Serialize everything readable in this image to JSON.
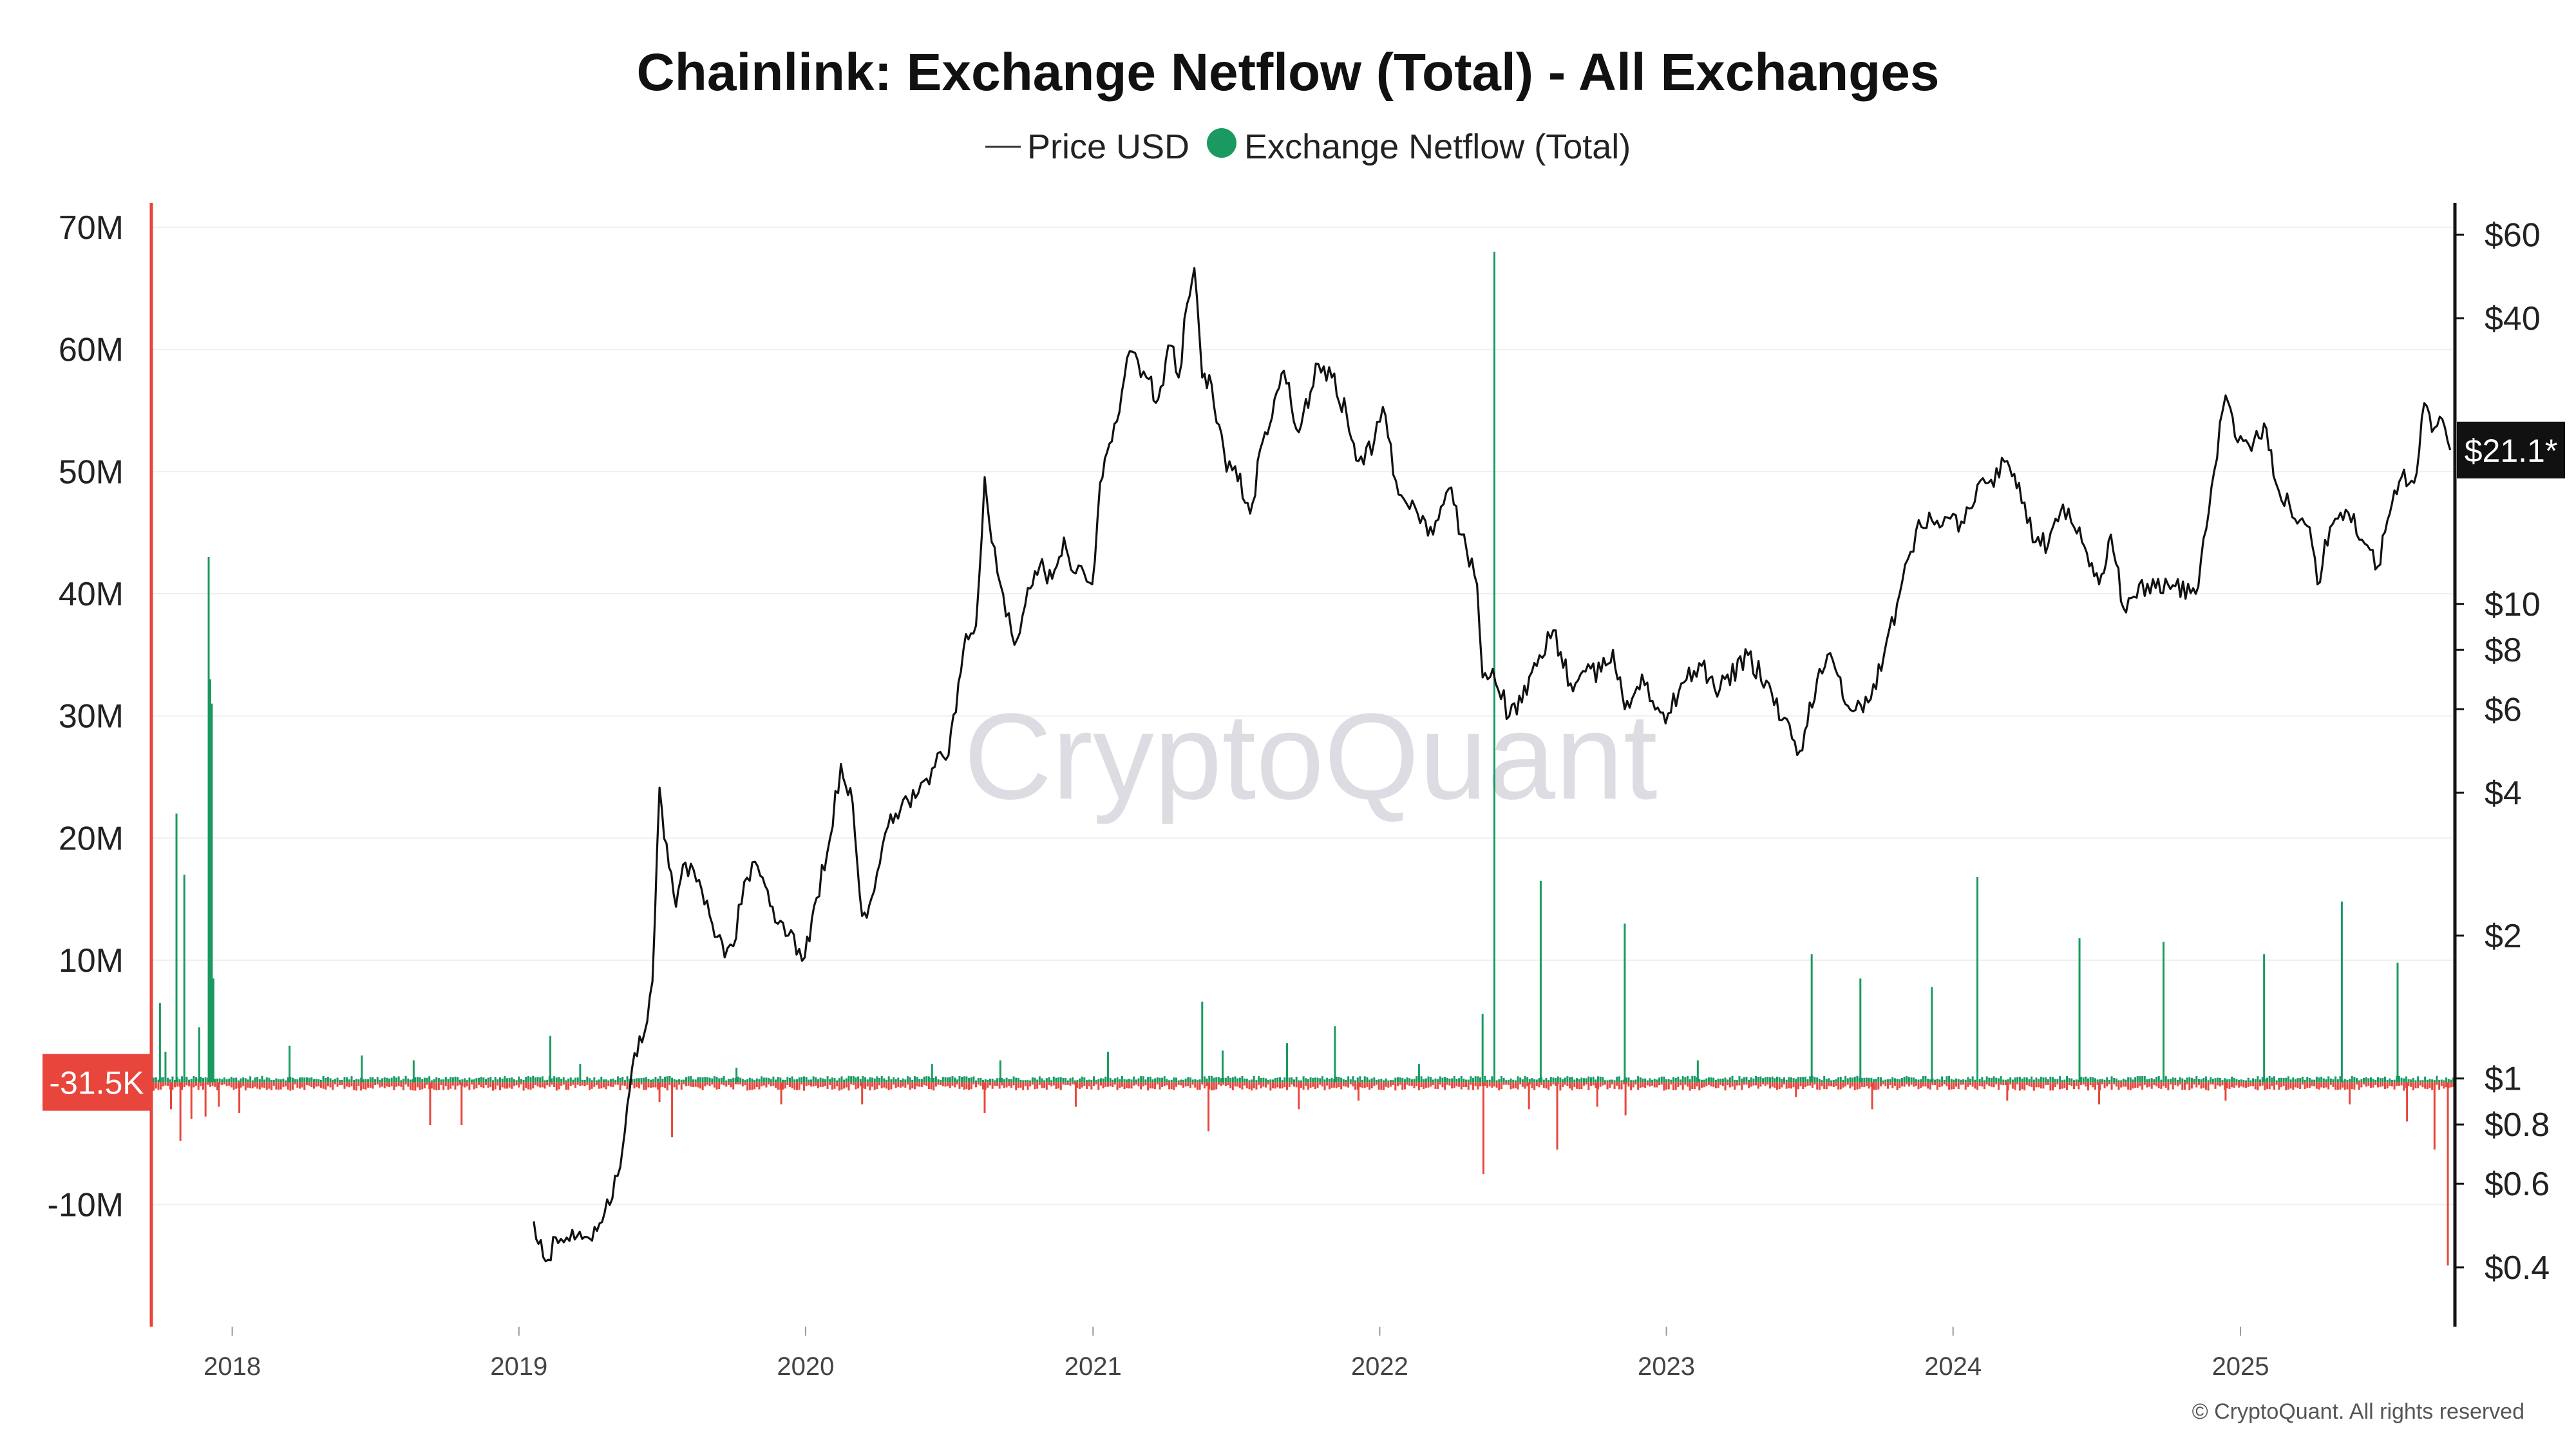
{
  "chart_data": {
    "type": "line",
    "title": "Chainlink: Exchange Netflow (Total) - All Exchanges",
    "legend": [
      {
        "label": "Price USD",
        "symbol": "line",
        "color": "#222222"
      },
      {
        "label": "Exchange Netflow (Total)",
        "symbol": "dot",
        "color": "#1a9a60"
      }
    ],
    "legend_position": "top-center",
    "grid": true,
    "watermark": "CryptoQuant",
    "copyright": "© CryptoQuant. All rights reserved",
    "x_axis": {
      "type": "time",
      "range": [
        "2017-09-20",
        "2025-10-01"
      ],
      "ticks": [
        "2018",
        "2019",
        "2020",
        "2021",
        "2022",
        "2023",
        "2024",
        "2025"
      ]
    },
    "y_left": {
      "label": "Exchange Netflow (Total)",
      "range": [
        -20000000,
        72000000
      ],
      "ticks": [
        {
          "value": 70000000,
          "label": "70M"
        },
        {
          "value": 60000000,
          "label": "60M"
        },
        {
          "value": 50000000,
          "label": "50M"
        },
        {
          "value": 40000000,
          "label": "40M"
        },
        {
          "value": 30000000,
          "label": "30M"
        },
        {
          "value": 20000000,
          "label": "20M"
        },
        {
          "value": 10000000,
          "label": "10M"
        },
        {
          "value": -10000000,
          "label": "-10M"
        }
      ],
      "current_value_label": "-31.5K",
      "current_value_color": "#e8463c"
    },
    "y_right": {
      "label": "Price USD",
      "scale": "log",
      "range": [
        0.3,
        70
      ],
      "ticks": [
        {
          "value": 60,
          "label": "$60"
        },
        {
          "value": 40,
          "label": "$40"
        },
        {
          "value": 10,
          "label": "$10"
        },
        {
          "value": 8,
          "label": "$8"
        },
        {
          "value": 6,
          "label": "$6"
        },
        {
          "value": 4,
          "label": "$4"
        },
        {
          "value": 2,
          "label": "$2"
        },
        {
          "value": 1,
          "label": "$1"
        },
        {
          "value": 0.8,
          "label": "$0.8"
        },
        {
          "value": 0.6,
          "label": "$0.6"
        },
        {
          "value": 0.4,
          "label": "$0.4"
        }
      ],
      "current_value_label": "$21.1*"
    },
    "price_series": {
      "name": "Price USD",
      "color": "#111111",
      "points": [
        [
          "2019-01-20",
          0.5
        ],
        [
          "2019-02-01",
          0.42
        ],
        [
          "2019-02-20",
          0.45
        ],
        [
          "2019-03-10",
          0.48
        ],
        [
          "2019-04-01",
          0.46
        ],
        [
          "2019-04-20",
          0.52
        ],
        [
          "2019-05-10",
          0.65
        ],
        [
          "2019-05-25",
          1.05
        ],
        [
          "2019-06-10",
          1.25
        ],
        [
          "2019-06-20",
          1.6
        ],
        [
          "2019-06-29",
          4.1
        ],
        [
          "2019-07-05",
          3.2
        ],
        [
          "2019-07-20",
          2.3
        ],
        [
          "2019-08-01",
          2.85
        ],
        [
          "2019-08-15",
          2.6
        ],
        [
          "2019-09-01",
          2.2
        ],
        [
          "2019-09-20",
          1.8
        ],
        [
          "2019-10-01",
          1.9
        ],
        [
          "2019-10-15",
          2.6
        ],
        [
          "2019-11-01",
          2.8
        ],
        [
          "2019-11-20",
          2.3
        ],
        [
          "2019-12-10",
          2.0
        ],
        [
          "2019-12-31",
          1.8
        ],
        [
          "2020-01-15",
          2.4
        ],
        [
          "2020-02-01",
          3.2
        ],
        [
          "2020-02-15",
          4.6
        ],
        [
          "2020-03-01",
          3.8
        ],
        [
          "2020-03-13",
          2.2
        ],
        [
          "2020-03-25",
          2.4
        ],
        [
          "2020-04-15",
          3.4
        ],
        [
          "2020-05-01",
          3.7
        ],
        [
          "2020-05-20",
          3.9
        ],
        [
          "2020-06-10",
          4.5
        ],
        [
          "2020-07-01",
          4.8
        ],
        [
          "2020-07-20",
          8.0
        ],
        [
          "2020-08-05",
          9.0
        ],
        [
          "2020-08-16",
          18.5
        ],
        [
          "2020-08-25",
          13.5
        ],
        [
          "2020-09-05",
          11.0
        ],
        [
          "2020-09-23",
          8.2
        ],
        [
          "2020-10-10",
          10.8
        ],
        [
          "2020-10-25",
          12.0
        ],
        [
          "2020-11-10",
          11.3
        ],
        [
          "2020-11-25",
          13.8
        ],
        [
          "2020-12-10",
          11.6
        ],
        [
          "2020-12-31",
          11.0
        ],
        [
          "2021-01-10",
          18.0
        ],
        [
          "2021-01-25",
          22.0
        ],
        [
          "2021-02-10",
          30.0
        ],
        [
          "2021-02-20",
          34.0
        ],
        [
          "2021-03-10",
          30.0
        ],
        [
          "2021-03-25",
          27.0
        ],
        [
          "2021-04-10",
          35.0
        ],
        [
          "2021-04-20",
          30.0
        ],
        [
          "2021-05-01",
          43.0
        ],
        [
          "2021-05-10",
          51.0
        ],
        [
          "2021-05-20",
          30.0
        ],
        [
          "2021-06-01",
          29.0
        ],
        [
          "2021-06-20",
          19.0
        ],
        [
          "2021-07-01",
          19.5
        ],
        [
          "2021-07-20",
          15.5
        ],
        [
          "2021-08-05",
          22.0
        ],
        [
          "2021-08-20",
          27.0
        ],
        [
          "2021-09-01",
          31.0
        ],
        [
          "2021-09-20",
          23.0
        ],
        [
          "2021-10-05",
          28.0
        ],
        [
          "2021-10-15",
          32.0
        ],
        [
          "2021-11-01",
          30.0
        ],
        [
          "2021-11-20",
          25.0
        ],
        [
          "2021-12-05",
          20.0
        ],
        [
          "2021-12-25",
          22.0
        ],
        [
          "2022-01-05",
          26.0
        ],
        [
          "2022-01-25",
          17.0
        ],
        [
          "2022-02-15",
          16.0
        ],
        [
          "2022-03-10",
          14.0
        ],
        [
          "2022-03-30",
          17.5
        ],
        [
          "2022-04-15",
          14.0
        ],
        [
          "2022-05-05",
          11.0
        ],
        [
          "2022-05-12",
          7.0
        ],
        [
          "2022-05-25",
          7.3
        ],
        [
          "2022-06-15",
          5.8
        ],
        [
          "2022-07-01",
          6.2
        ],
        [
          "2022-07-20",
          7.4
        ],
        [
          "2022-08-10",
          8.8
        ],
        [
          "2022-09-01",
          6.8
        ],
        [
          "2022-09-20",
          7.2
        ],
        [
          "2022-10-10",
          7.2
        ],
        [
          "2022-10-25",
          8.0
        ],
        [
          "2022-11-09",
          6.0
        ],
        [
          "2022-12-01",
          7.1
        ],
        [
          "2022-12-31",
          5.6
        ],
        [
          "2023-01-20",
          6.8
        ],
        [
          "2023-02-15",
          7.4
        ],
        [
          "2023-03-10",
          6.6
        ],
        [
          "2023-04-15",
          7.8
        ],
        [
          "2023-05-15",
          6.5
        ],
        [
          "2023-06-10",
          5.2
        ],
        [
          "2023-06-20",
          4.9
        ],
        [
          "2023-07-15",
          7.3
        ],
        [
          "2023-08-01",
          7.6
        ],
        [
          "2023-08-20",
          6.1
        ],
        [
          "2023-09-15",
          6.2
        ],
        [
          "2023-10-05",
          7.8
        ],
        [
          "2023-10-25",
          10.5
        ],
        [
          "2023-11-15",
          14.3
        ],
        [
          "2023-12-05",
          15.0
        ],
        [
          "2023-12-25",
          15.2
        ],
        [
          "2024-01-15",
          14.8
        ],
        [
          "2024-02-01",
          17.8
        ],
        [
          "2024-02-15",
          18.0
        ],
        [
          "2024-03-10",
          20.0
        ],
        [
          "2024-03-25",
          18.0
        ],
        [
          "2024-04-15",
          13.5
        ],
        [
          "2024-05-01",
          13.3
        ],
        [
          "2024-05-20",
          16.2
        ],
        [
          "2024-06-10",
          14.5
        ],
        [
          "2024-07-05",
          11.0
        ],
        [
          "2024-07-20",
          14.0
        ],
        [
          "2024-08-05",
          9.8
        ],
        [
          "2024-08-25",
          11.0
        ],
        [
          "2024-09-15",
          10.8
        ],
        [
          "2024-10-10",
          10.9
        ],
        [
          "2024-11-05",
          10.5
        ],
        [
          "2024-11-25",
          17.6
        ],
        [
          "2024-12-13",
          27.5
        ],
        [
          "2024-12-25",
          22.5
        ],
        [
          "2025-01-15",
          21.0
        ],
        [
          "2025-01-31",
          24.0
        ],
        [
          "2025-02-15",
          18.0
        ],
        [
          "2025-03-05",
          16.0
        ],
        [
          "2025-03-30",
          14.5
        ],
        [
          "2025-04-09",
          11.0
        ],
        [
          "2025-04-25",
          14.5
        ],
        [
          "2025-05-15",
          15.8
        ],
        [
          "2025-06-15",
          13.0
        ],
        [
          "2025-06-25",
          12.0
        ],
        [
          "2025-07-10",
          15.5
        ],
        [
          "2025-07-25",
          18.5
        ],
        [
          "2025-08-10",
          18.0
        ],
        [
          "2025-08-23",
          26.5
        ],
        [
          "2025-09-05",
          23.5
        ],
        [
          "2025-09-15",
          24.5
        ],
        [
          "2025-09-25",
          21.1
        ]
      ]
    },
    "netflow_series": {
      "name": "Exchange Netflow (Total)",
      "positive_color": "#1a9a60",
      "negative_color": "#e8463c",
      "spikes": [
        [
          "2017-10-01",
          6500000
        ],
        [
          "2017-10-08",
          2500000
        ],
        [
          "2017-10-15",
          -2200000
        ],
        [
          "2017-10-22",
          22000000
        ],
        [
          "2017-10-27",
          -4800000
        ],
        [
          "2017-11-01",
          17000000
        ],
        [
          "2017-11-10",
          -3000000
        ],
        [
          "2017-11-20",
          4500000
        ],
        [
          "2017-11-28",
          -2800000
        ],
        [
          "2017-12-02",
          43000000
        ],
        [
          "2017-12-04",
          33000000
        ],
        [
          "2017-12-06",
          31000000
        ],
        [
          "2017-12-08",
          8500000
        ],
        [
          "2017-12-15",
          -2000000
        ],
        [
          "2018-01-10",
          -2500000
        ],
        [
          "2018-03-15",
          3000000
        ],
        [
          "2018-06-15",
          2200000
        ],
        [
          "2018-08-20",
          1800000
        ],
        [
          "2018-09-10",
          -3500000
        ],
        [
          "2018-10-20",
          -3500000
        ],
        [
          "2019-02-10",
          3800000
        ],
        [
          "2019-03-20",
          1500000
        ],
        [
          "2019-06-29",
          -1600000
        ],
        [
          "2019-07-15",
          -4500000
        ],
        [
          "2019-10-05",
          1200000
        ],
        [
          "2019-12-01",
          -1800000
        ],
        [
          "2020-03-13",
          -1800000
        ],
        [
          "2020-06-10",
          1500000
        ],
        [
          "2020-08-16",
          -2500000
        ],
        [
          "2020-09-05",
          1800000
        ],
        [
          "2020-12-10",
          -2000000
        ],
        [
          "2021-01-20",
          2500000
        ],
        [
          "2021-05-20",
          6600000
        ],
        [
          "2021-05-28",
          -4000000
        ],
        [
          "2021-06-15",
          2600000
        ],
        [
          "2021-09-05",
          3200000
        ],
        [
          "2021-09-20",
          -2200000
        ],
        [
          "2021-11-05",
          4600000
        ],
        [
          "2021-12-05",
          -1500000
        ],
        [
          "2022-02-20",
          1500000
        ],
        [
          "2022-05-12",
          5600000
        ],
        [
          "2022-05-13",
          -7500000
        ],
        [
          "2022-05-27",
          68000000
        ],
        [
          "2022-07-10",
          -2200000
        ],
        [
          "2022-07-25",
          16500000
        ],
        [
          "2022-08-15",
          -5500000
        ],
        [
          "2022-10-05",
          -2000000
        ],
        [
          "2022-11-09",
          13000000
        ],
        [
          "2022-11-10",
          -2700000
        ],
        [
          "2023-02-10",
          1800000
        ],
        [
          "2023-06-15",
          -1200000
        ],
        [
          "2023-07-05",
          10500000
        ],
        [
          "2023-09-05",
          8500000
        ],
        [
          "2023-09-20",
          -2200000
        ],
        [
          "2023-12-05",
          7800000
        ],
        [
          "2024-02-01",
          16800000
        ],
        [
          "2024-03-10",
          -1500000
        ],
        [
          "2024-06-10",
          11800000
        ],
        [
          "2024-07-05",
          -1800000
        ],
        [
          "2024-09-25",
          11500000
        ],
        [
          "2024-12-13",
          -1500000
        ],
        [
          "2025-01-31",
          10500000
        ],
        [
          "2025-05-10",
          14800000
        ],
        [
          "2025-05-20",
          -1800000
        ],
        [
          "2025-07-20",
          9800000
        ],
        [
          "2025-08-01",
          -3200000
        ],
        [
          "2025-09-05",
          -5500000
        ],
        [
          "2025-09-22",
          -15000000
        ],
        [
          "2025-09-25",
          -31500
        ]
      ]
    }
  }
}
